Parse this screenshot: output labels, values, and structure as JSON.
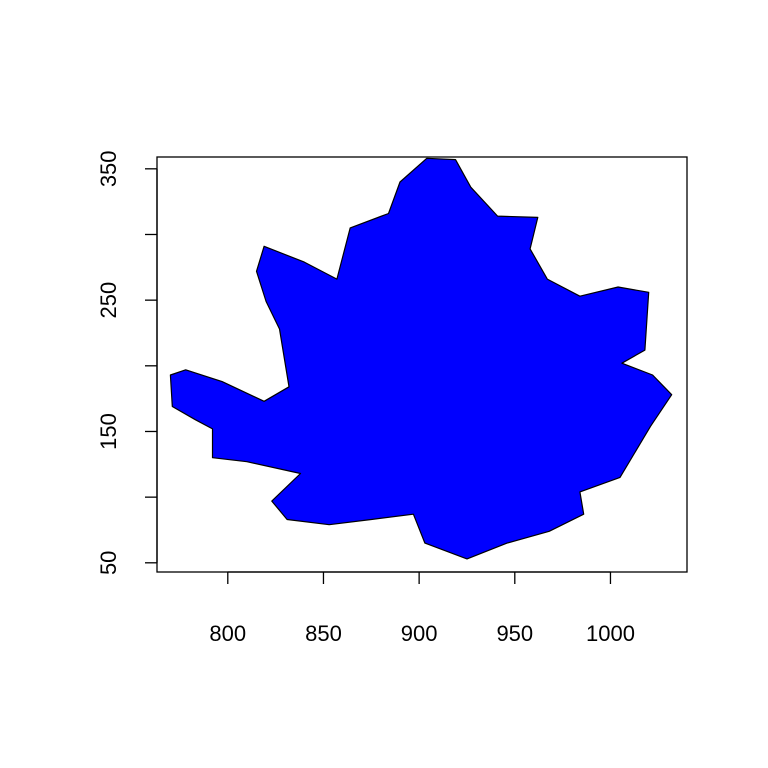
{
  "chart_data": {
    "type": "polygon",
    "title": "",
    "xlabel": "",
    "ylabel": "",
    "xlim": [
      763,
      1040
    ],
    "ylim": [
      43,
      359
    ],
    "x_ticks": [
      800,
      850,
      900,
      950,
      1000
    ],
    "y_ticks": [
      50,
      100,
      150,
      200,
      250,
      300,
      350
    ],
    "x_tick_labels": [
      "800",
      "850",
      "900",
      "950",
      "1000"
    ],
    "y_tick_labels": [
      "50",
      "",
      "150",
      "",
      "250",
      "",
      "350"
    ],
    "grid": false,
    "legend": "none",
    "fill_color": "#0000ff",
    "stroke_color": "#000000",
    "points": [
      [
        904,
        358
      ],
      [
        919,
        357
      ],
      [
        927,
        336
      ],
      [
        941,
        314
      ],
      [
        962,
        313
      ],
      [
        958,
        289
      ],
      [
        967,
        266
      ],
      [
        984,
        253
      ],
      [
        1004,
        260
      ],
      [
        1020,
        256
      ],
      [
        1018,
        212
      ],
      [
        1006,
        202
      ],
      [
        1022,
        193
      ],
      [
        1032,
        178
      ],
      [
        1021,
        154
      ],
      [
        1005,
        115
      ],
      [
        984,
        104
      ],
      [
        986,
        87
      ],
      [
        968,
        74
      ],
      [
        946,
        65
      ],
      [
        925,
        53
      ],
      [
        903,
        65
      ],
      [
        897,
        87
      ],
      [
        875,
        83
      ],
      [
        853,
        79
      ],
      [
        831,
        83
      ],
      [
        823,
        97
      ],
      [
        838,
        118
      ],
      [
        810,
        127
      ],
      [
        792,
        130
      ],
      [
        792,
        152
      ],
      [
        783,
        159
      ],
      [
        771,
        169
      ],
      [
        770,
        193
      ],
      [
        778,
        197
      ],
      [
        797,
        188
      ],
      [
        819,
        173
      ],
      [
        832,
        184
      ],
      [
        827,
        228
      ],
      [
        820,
        249
      ],
      [
        815,
        272
      ],
      [
        819,
        291
      ],
      [
        840,
        279
      ],
      [
        857,
        266
      ],
      [
        864,
        305
      ],
      [
        884,
        316
      ],
      [
        890,
        340
      ]
    ]
  }
}
